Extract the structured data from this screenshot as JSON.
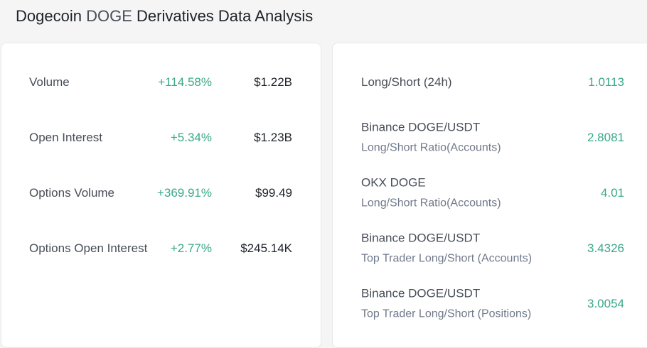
{
  "title": {
    "coin_name": "Dogecoin",
    "coin_symbol": "DOGE",
    "suffix": "Derivatives Data Analysis"
  },
  "left_panel": {
    "rows": [
      {
        "label": "Volume",
        "change": "+114.58%",
        "amount": "$1.22B"
      },
      {
        "label": "Open Interest",
        "change": "+5.34%",
        "amount": "$1.23B"
      },
      {
        "label": "Options Volume",
        "change": "+369.91%",
        "amount": "$99.49"
      },
      {
        "label": "Options Open Interest",
        "change": "+2.77%",
        "amount": "$245.14K"
      }
    ]
  },
  "right_panel": {
    "rows": [
      {
        "label": "Long/Short (24h)",
        "sublabel": "",
        "value": "1.0113"
      },
      {
        "label": "Binance DOGE/USDT",
        "sublabel": "Long/Short Ratio(Accounts)",
        "value": "2.8081"
      },
      {
        "label": "OKX DOGE",
        "sublabel": "Long/Short Ratio(Accounts)",
        "value": "4.01"
      },
      {
        "label": "Binance DOGE/USDT",
        "sublabel": "Top Trader Long/Short (Accounts)",
        "value": "3.4326"
      },
      {
        "label": "Binance DOGE/USDT",
        "sublabel": "Top Trader Long/Short (Positions)",
        "value": "3.0054"
      }
    ]
  },
  "colors": {
    "positive": "#3aa989",
    "text_primary": "#1e2329",
    "text_secondary": "#474d57",
    "text_muted": "#707a8a",
    "page_background": "#f5f5f5",
    "card_background": "#ffffff"
  }
}
